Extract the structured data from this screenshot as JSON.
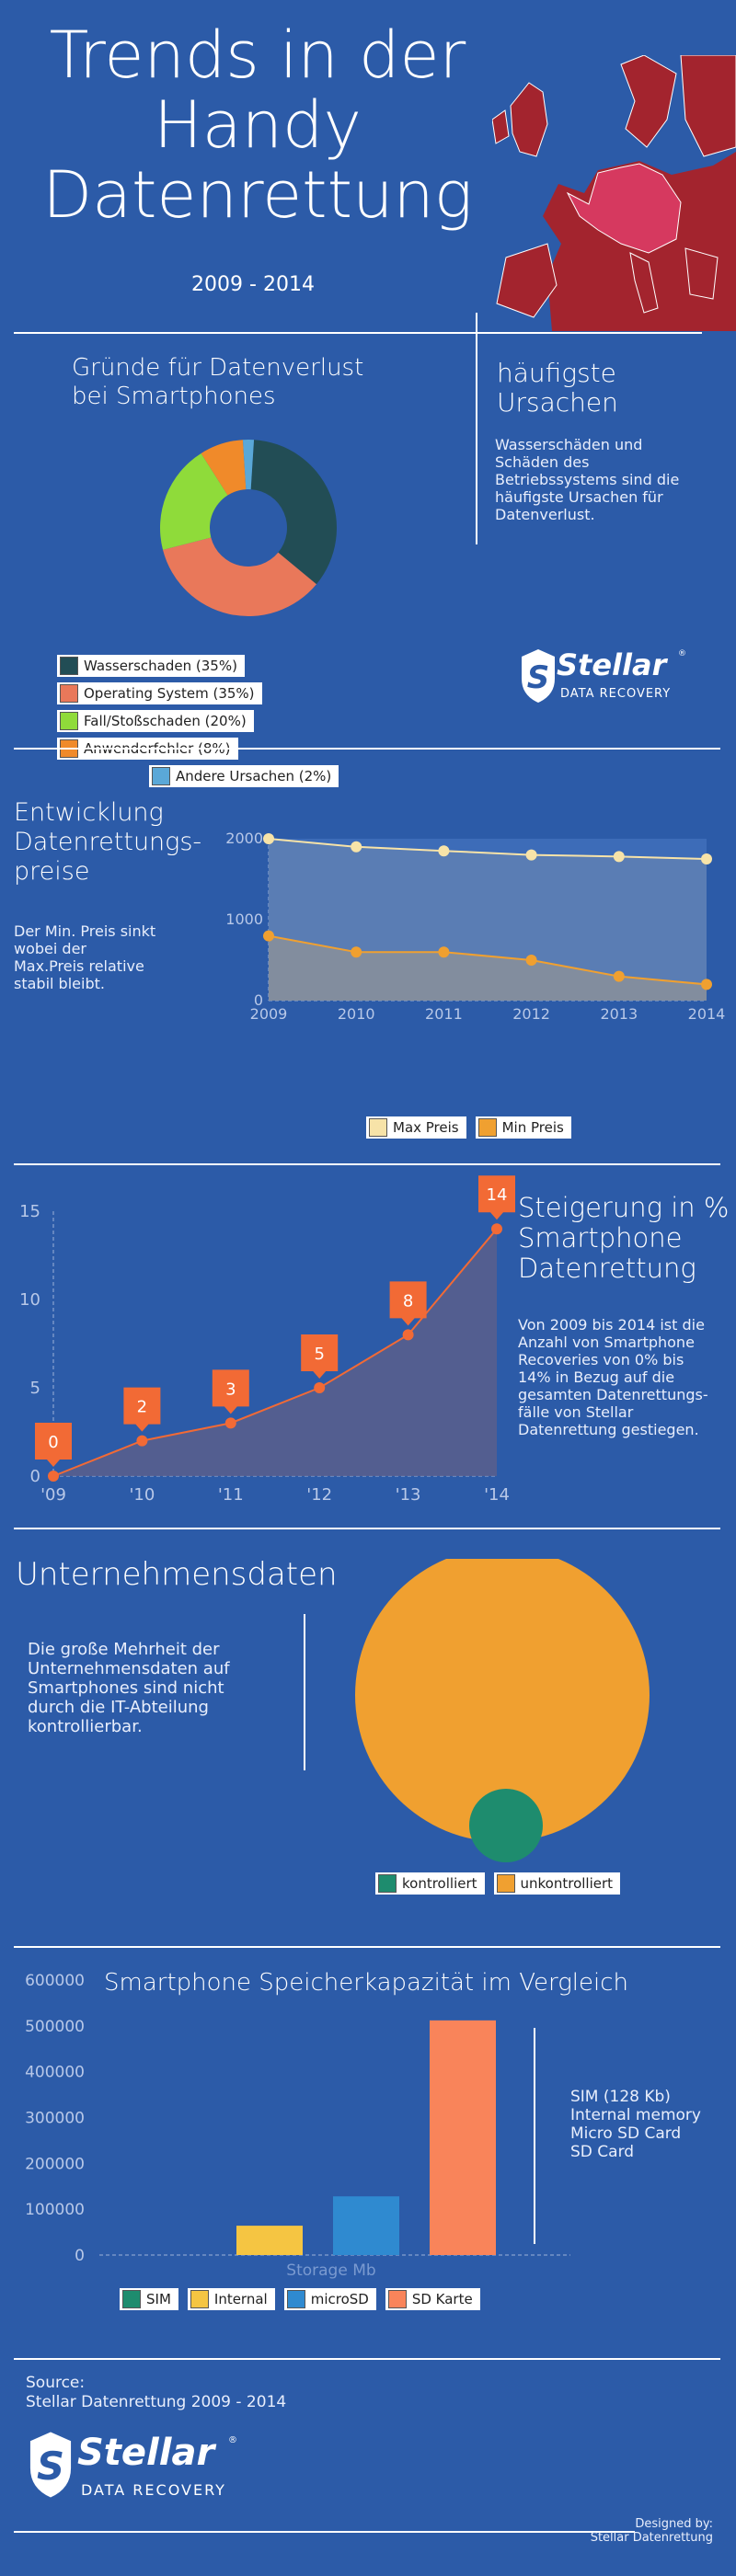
{
  "header": {
    "title_lines": [
      "Trends in der",
      "Handy",
      "Datenrettung"
    ],
    "years": "2009 - 2014"
  },
  "colors": {
    "background": "#2c5ba8",
    "map_red": "#a3242e",
    "map_pink": "#d6395f",
    "dark_teal": "#224d55",
    "salmon": "#e9785a",
    "lime": "#8fdb3a",
    "orange": "#f08a2a",
    "light_blue": "#5aa8d8",
    "chart_orange": "#f26a35",
    "bubble_orange": "#f0a030",
    "bubble_green": "#1e8c6e",
    "bar_yellow": "#f5c542",
    "bar_blue": "#2f8ad0"
  },
  "section1": {
    "title_lines": [
      "Gründe für Datenverlust",
      "bei Smartphones"
    ],
    "side_title_lines": [
      "häufigste",
      "Ursachen"
    ],
    "side_text_lines": [
      "Wasserschäden und",
      "Schäden des",
      "Betriebssystems sind die",
      "häufigste Ursachen für",
      "Datenverlust."
    ],
    "legend": [
      {
        "label": "Wasserschaden (35%)",
        "color": "#224d55"
      },
      {
        "label": "Operating System (35%)",
        "color": "#e9785a"
      },
      {
        "label": "Fall/Stoßschaden (20%)",
        "color": "#8fdb3a"
      },
      {
        "label": "Anwenderfehler (8%)",
        "color": "#f08a2a"
      },
      {
        "label": "Andere Ursachen (2%)",
        "color": "#5aa8d8"
      }
    ]
  },
  "logo": {
    "brand": "Stellar",
    "registered": "®",
    "tagline": "DATA RECOVERY"
  },
  "section2": {
    "title_lines": [
      "Entwicklung",
      "Datenrettungs-",
      "preise"
    ],
    "text_lines": [
      "Der Min. Preis sinkt",
      "wobei der",
      "Max.Preis relative",
      "stabil bleibt."
    ]
  },
  "section3": {
    "title_lines": [
      "Steigerung in %",
      "Smartphone",
      "Datenrettung"
    ],
    "text_lines": [
      "Von 2009 bis 2014 ist die",
      "Anzahl von Smartphone",
      "Recoveries von 0% bis",
      "14% in Bezug auf die",
      "gesamten Datenrettungs-",
      "fälle von Stellar",
      "Datenrettung gestiegen."
    ]
  },
  "section4": {
    "title": "Unternehmensdaten",
    "text_lines": [
      "Die große Mehrheit der",
      "Unternehmensdaten auf",
      "Smartphones sind nicht",
      "durch die IT-Abteilung",
      "kontrollierbar."
    ],
    "legend": [
      {
        "label": "kontrolliert",
        "color": "#1e8c6e"
      },
      {
        "label": "unkontrolliert",
        "color": "#f0a030"
      }
    ]
  },
  "section5": {
    "title": "Smartphone Speicherkapazität im Vergleich",
    "side_lines": [
      "SIM (128 Kb)",
      "Internal memory",
      "Micro SD Card",
      "SD Card"
    ],
    "legend": [
      {
        "label": "SIM",
        "color": "#1e8c6e"
      },
      {
        "label": "Internal",
        "color": "#f5c542"
      },
      {
        "label": "microSD",
        "color": "#2f8ad0"
      },
      {
        "label": "SD Karte",
        "color": "#f9845a"
      }
    ]
  },
  "footer": {
    "source_label": "Source:",
    "source_text": "Stellar Datenrettung 2009 - 2014",
    "designed_label": "Designed by:",
    "designed_text": "Stellar Datenrettung"
  },
  "chart_data": [
    {
      "type": "pie",
      "title": "",
      "labels": [
        "Wasserschaden",
        "Operating System",
        "Fall/Stoßschaden",
        "Anwenderfehler",
        "Andere Ursachen"
      ],
      "values": [
        35,
        35,
        20,
        8,
        2
      ],
      "colors": [
        "#224d55",
        "#e9785a",
        "#8fdb3a",
        "#f08a2a",
        "#5aa8d8"
      ]
    },
    {
      "type": "area",
      "x": [
        "2009",
        "2010",
        "2011",
        "2012",
        "2013",
        "2014"
      ],
      "series": [
        {
          "name": "Max Preis",
          "values": [
            2000,
            1900,
            1850,
            1800,
            1780,
            1750
          ],
          "color": "#f7e3a8"
        },
        {
          "name": "Min Preis",
          "values": [
            800,
            600,
            600,
            500,
            300,
            200
          ],
          "color": "#f0a030"
        }
      ],
      "yticks": [
        0,
        1000,
        2000
      ],
      "ylim": [
        0,
        2000
      ]
    },
    {
      "type": "area",
      "x": [
        "'09",
        "'10",
        "'11",
        "'12",
        "'13",
        "'14"
      ],
      "series": [
        {
          "values": [
            0,
            2,
            3,
            5,
            8,
            14
          ],
          "color": "#f26a35"
        }
      ],
      "data_labels": [
        "0",
        "2",
        "3",
        "5",
        "8",
        "14"
      ],
      "yticks": [
        0,
        5,
        10,
        15
      ],
      "ylim": [
        0,
        15
      ]
    },
    {
      "type": "bubble",
      "labels": [
        "kontrolliert",
        "unkontrolliert"
      ],
      "colors": [
        "#1e8c6e",
        "#f0a030"
      ]
    },
    {
      "type": "bar",
      "categories": [
        "SIM",
        "Internal",
        "microSD",
        "SD Karte"
      ],
      "values": [
        0.128,
        64000,
        128000,
        512000
      ],
      "colors": [
        "#1e8c6e",
        "#f5c542",
        "#2f8ad0",
        "#f9845a"
      ],
      "xlabel": "Storage Mb",
      "ytick_labels": [
        "0",
        "100000",
        "200000",
        "300000",
        "400000",
        "500000",
        "600000"
      ],
      "ylim": [
        0,
        600000
      ]
    }
  ]
}
